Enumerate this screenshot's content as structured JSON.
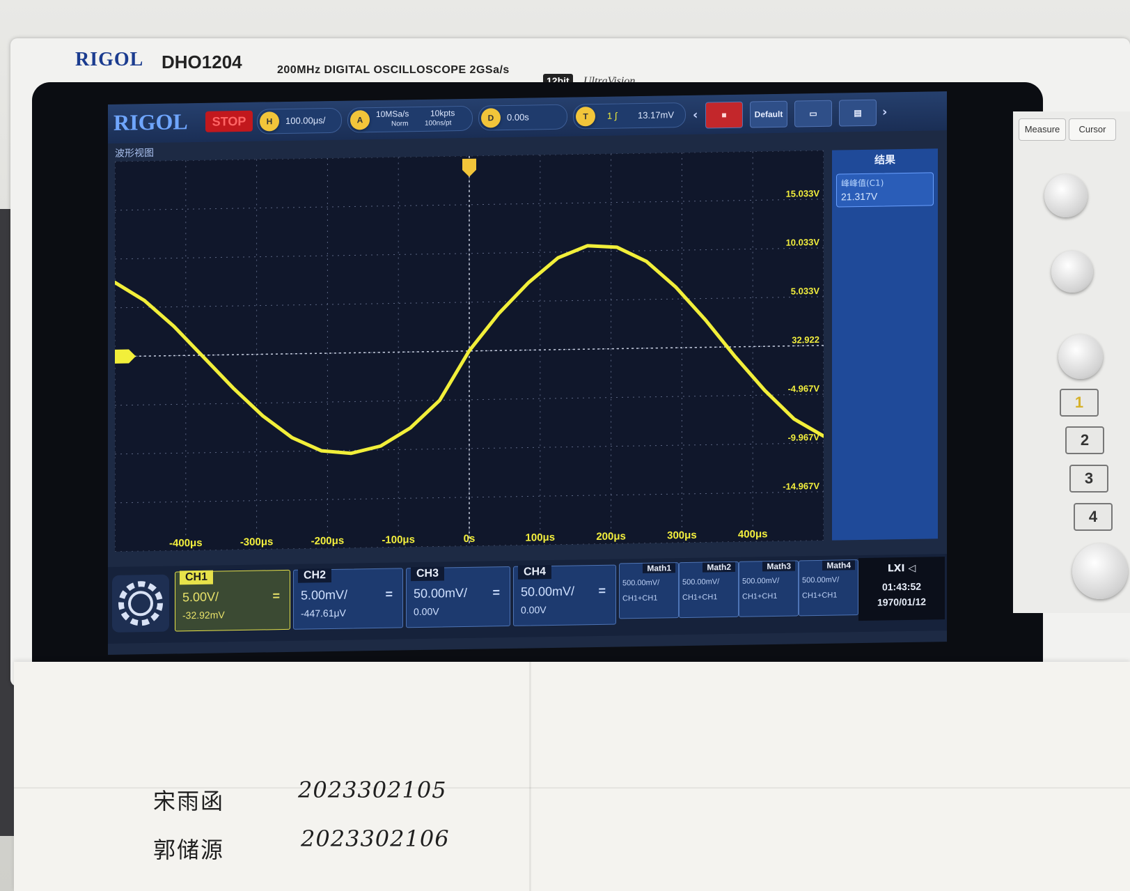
{
  "instrument": {
    "brand": "RIGOL",
    "model": "DHO1204",
    "spec": "200MHz DIGITAL OSCILLOSCOPE 2GSa/s",
    "bits": "12bit",
    "series": "UltraVision"
  },
  "topbar": {
    "logo": "RIGOL",
    "run_state": "STOP",
    "timebase": "100.00μs/",
    "sample_rate": "10MSa/s",
    "memory_depth": "10kpts",
    "acq_mode": "Norm",
    "time_per_pt": "100ns/pt",
    "h_offset": "0.00s",
    "trigger_level": "13.17mV",
    "btn_default": "Default"
  },
  "view_label": "波形视图",
  "results": {
    "title": "结果",
    "item_label": "峰峰值(C1)",
    "item_value": "21.317V"
  },
  "chart_data": {
    "type": "line",
    "x": [
      -480,
      -440,
      -400,
      -360,
      -320,
      -280,
      -240,
      -200,
      -160,
      -120,
      -80,
      -40,
      0,
      40,
      80,
      120,
      160,
      200,
      240,
      280,
      320,
      360,
      400,
      440,
      480
    ],
    "y_volts": [
      7.6,
      5.7,
      3.0,
      -0.2,
      -3.4,
      -6.3,
      -8.6,
      -10.0,
      -10.3,
      -9.6,
      -7.8,
      -5.0,
      0.03,
      3.8,
      6.9,
      9.4,
      10.6,
      10.4,
      8.9,
      6.2,
      2.8,
      -1.0,
      -4.5,
      -7.5,
      -9.3
    ],
    "x_unit": "μs",
    "xlim": [
      -480,
      480
    ],
    "ylim": [
      -20,
      20
    ],
    "x_ticks": [
      "-400μs",
      "-300μs",
      "-200μs",
      "-100μs",
      "0s",
      "100μs",
      "200μs",
      "300μs",
      "400μs"
    ],
    "y_ticks": [
      "15.033V",
      "10.033V",
      "5.033V",
      "32.922",
      "-4.967V",
      "-9.967V",
      "-14.967V"
    ],
    "trace_color": "#f2ef3a",
    "grid": true
  },
  "channels": [
    {
      "tab": "CH1",
      "scale": "5.00V/",
      "offset": "-32.92mV",
      "eq": "="
    },
    {
      "tab": "CH2",
      "scale": "5.00mV/",
      "offset": "-447.61μV",
      "eq": "="
    },
    {
      "tab": "CH3",
      "scale": "50.00mV/",
      "offset": "0.00V",
      "eq": "="
    },
    {
      "tab": "CH4",
      "scale": "50.00mV/",
      "offset": "0.00V",
      "eq": "="
    }
  ],
  "maths": [
    {
      "tab": "Math1",
      "scale": "500.00mV/",
      "src": "CH1+CH1"
    },
    {
      "tab": "Math2",
      "scale": "500.00mV/",
      "src": "CH1+CH1"
    },
    {
      "tab": "Math3",
      "scale": "500.00mV/",
      "src": "CH1+CH1"
    },
    {
      "tab": "Math4",
      "scale": "500.00mV/",
      "src": "CH1+CH1"
    }
  ],
  "status": {
    "time": "01:43:52",
    "date": "1970/01/12"
  },
  "side_panel": {
    "measure": "Measure",
    "cursor": "Cursor",
    "ch_keys": [
      "1",
      "2",
      "3",
      "4"
    ]
  },
  "note": {
    "line1_name": "宋雨函",
    "line1_id": "2023302105",
    "line2_name": "郭储源",
    "line2_id": "2023302106"
  }
}
